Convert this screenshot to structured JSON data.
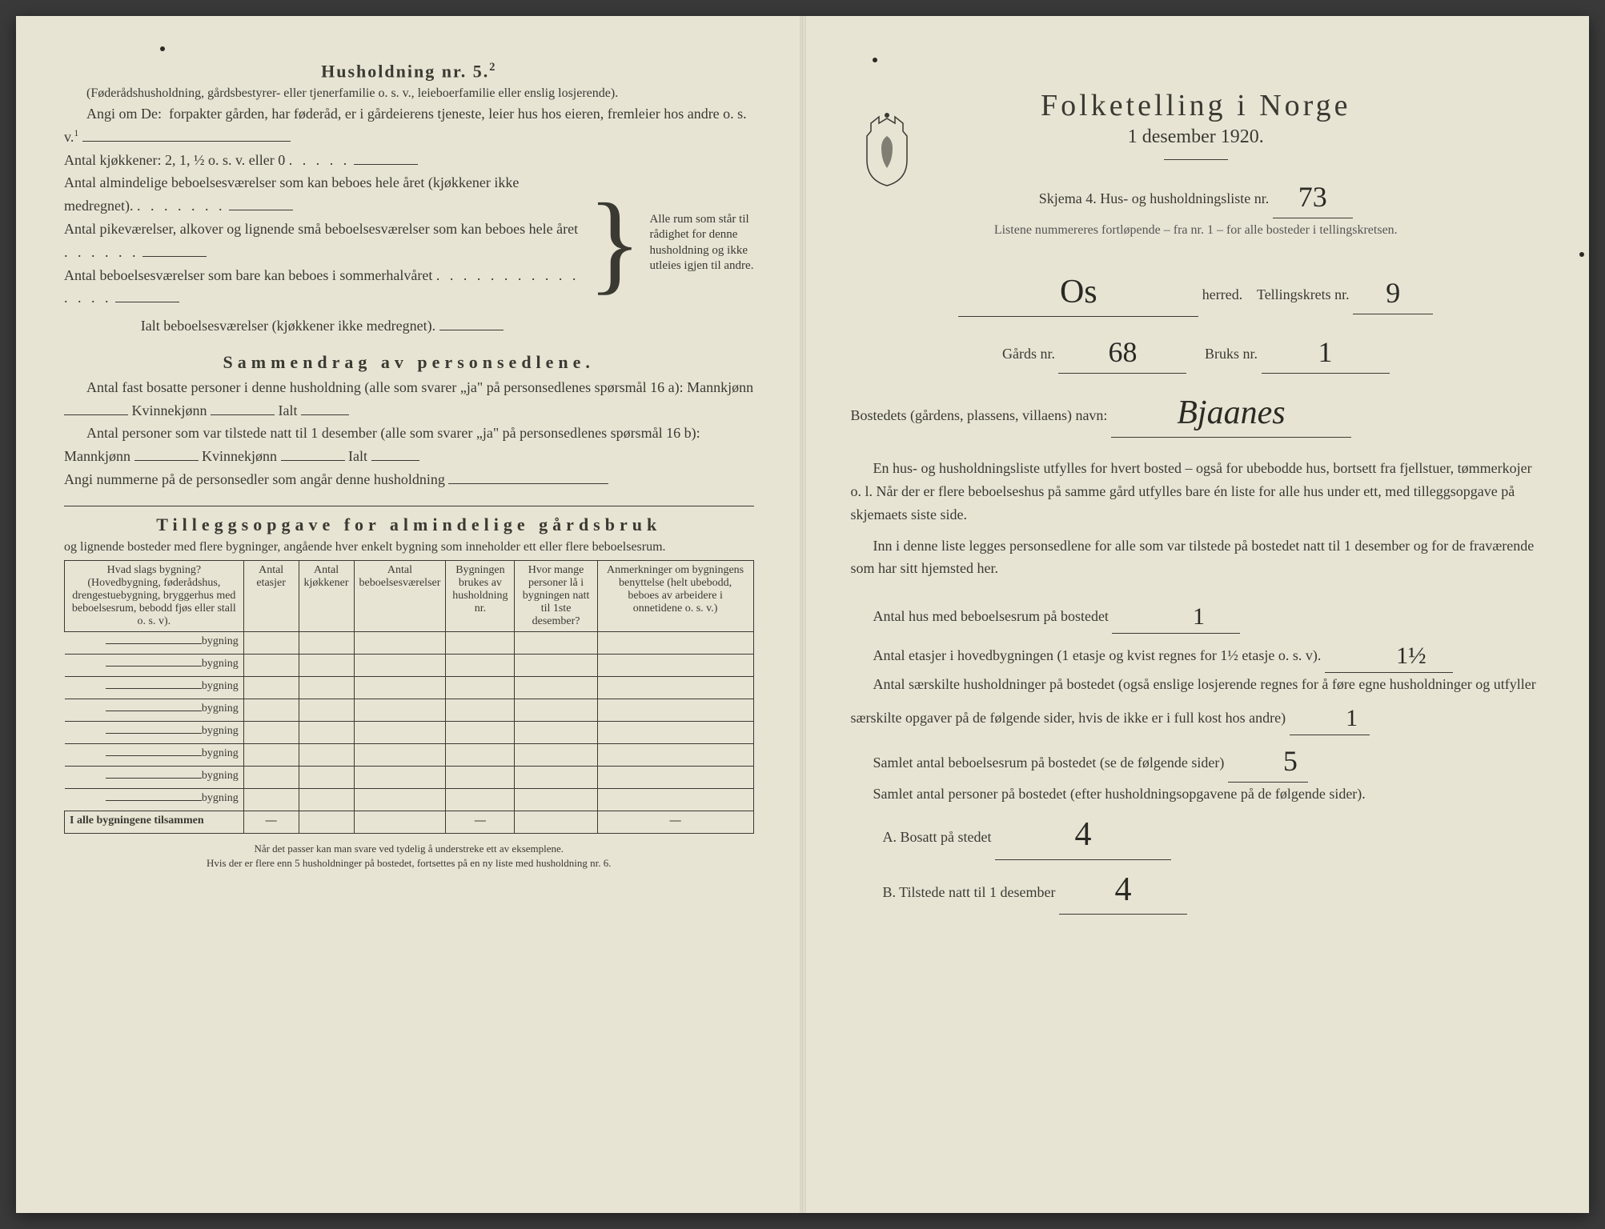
{
  "left": {
    "h5_title": "Husholdning nr. 5.",
    "h5_sup": "2",
    "h5_para1": "(Føderådshusholdning, gårdsbestyrer- eller tjenerfamilie o. s. v., leieboerfamilie eller enslig losjerende).",
    "h5_para2_lead": "Angi om De:",
    "h5_para2_rest": "forpakter gården, har føderåd, er i gårdeierens tjeneste, leier hus hos eieren, fremleier hos andre o. s. v.",
    "h5_sup1": "1",
    "kitchen_line": "Antal kjøkkener: 2, 1, ½ o. s. v. eller 0",
    "rooms1": "Antal almindelige beboelsesværelser som kan beboes hele året (kjøkkener ikke medregnet).",
    "rooms2": "Antal pikeværelser, alkover og lignende små beboelsesværelser som kan beboes hele året",
    "rooms3": "Antal beboelsesværelser som bare kan beboes i sommerhalvåret",
    "rooms_total": "Ialt beboelsesværelser  (kjøkkener ikke medregnet).",
    "brace_text": "Alle rum som står til rådighet for denne husholdning og ikke utleies igjen til andre.",
    "samm_title": "Sammendrag av personsedlene.",
    "samm_p1a": "Antal fast bosatte personer i denne husholdning (alle som svarer „ja\" på personsedlenes spørsmål 16 a): Mannkjønn",
    "samm_kv": "Kvinnekjønn",
    "samm_ialt": "Ialt",
    "samm_p2a": "Antal personer som var tilstede natt til 1 desember (alle som svarer „ja\" på personsedlenes spørsmål 16 b): Mannkjønn",
    "samm_p3": "Angi nummerne på de personsedler som angår denne husholdning",
    "till_title": "Tilleggsopgave for almindelige gårdsbruk",
    "till_sub": "og lignende bosteder med flere bygninger, angående hver enkelt bygning som inneholder ett eller flere beboelsesrum.",
    "table": {
      "headers": [
        "Hvad slags bygning?\n(Hovedbygning, føderådshus, drengestuebygning, bryggerhus med beboelsesrum, bebodd fjøs eller stall o. s. v).",
        "Antal etasjer",
        "Antal kjøkkener",
        "Antal beboelsesværelser",
        "Bygningen brukes av husholdning nr.",
        "Hvor mange personer lå i bygningen natt til 1ste desember?",
        "Anmerkninger om bygningens benyttelse (helt ubebodd, beboes av arbeidere i onnetidene o. s. v.)"
      ],
      "row_label": "bygning",
      "row_count": 8,
      "total_label": "I alle bygningene tilsammen",
      "dash": "—"
    },
    "footnote1": "Når det passer kan man svare ved tydelig å understreke ett av eksemplene.",
    "footnote2": "Hvis der er flere enn 5 husholdninger på bostedet, fortsettes på en ny liste med husholdning nr. 6."
  },
  "right": {
    "title": "Folketelling i Norge",
    "subtitle": "1 desember 1920.",
    "skjema_line_a": "Skjema 4.   Hus- og husholdningsliste nr.",
    "liste_nr": "73",
    "skjema_sub": "Listene nummereres fortløpende – fra nr. 1 – for alle bosteder i tellingskretsen.",
    "herred_label": "herred.",
    "herred_value": "Os",
    "tellingskrets_label": "Tellingskrets nr.",
    "tellingskrets_value": "9",
    "gards_label": "Gårds nr.",
    "gards_value": "68",
    "bruks_label": "Bruks nr.",
    "bruks_value": "1",
    "bosted_label": "Bostedets (gårdens, plassens, villaens) navn:",
    "bosted_value": "Bjaanes",
    "para1": "En hus- og husholdningsliste utfylles for hvert bosted – også for ubebodde hus, bortsett fra fjellstuer, tømmerkojer o. l.  Når der er flere beboelseshus på samme gård utfylles bare én liste for alle hus under ett, med tilleggsopgave på skjemaets siste side.",
    "para2": "Inn i denne liste legges personsedlene for alle som var tilstede på bostedet natt til 1 desember og for de fraværende som har sitt hjemsted her.",
    "q1_label": "Antal hus med beboelsesrum på bostedet",
    "q1_value": "1",
    "q2_label_a": "Antal etasjer i hovedbygningen (1 etasje og kvist regnes for 1½ etasje o. s. v).",
    "q2_value": "1½",
    "q3_label": "Antal særskilte husholdninger på bostedet (også enslige losjerende regnes for å føre egne husholdninger og utfyller særskilte opgaver på de følgende sider, hvis de ikke er i full kost hos andre)",
    "q3_value": "1",
    "q4_label": "Samlet antal beboelsesrum på bostedet (se de følgende sider)",
    "q4_value": "5",
    "q5_label": "Samlet antal personer på bostedet (efter husholdningsopgavene på de følgende sider).",
    "qA_label": "A.  Bosatt på stedet",
    "qA_value": "4",
    "qB_label": "B.  Tilstede natt til 1 desember",
    "qB_value": "4"
  },
  "colors": {
    "paper": "#e8e4d4",
    "ink": "#3a3a32",
    "hand": "#2a2a24"
  }
}
